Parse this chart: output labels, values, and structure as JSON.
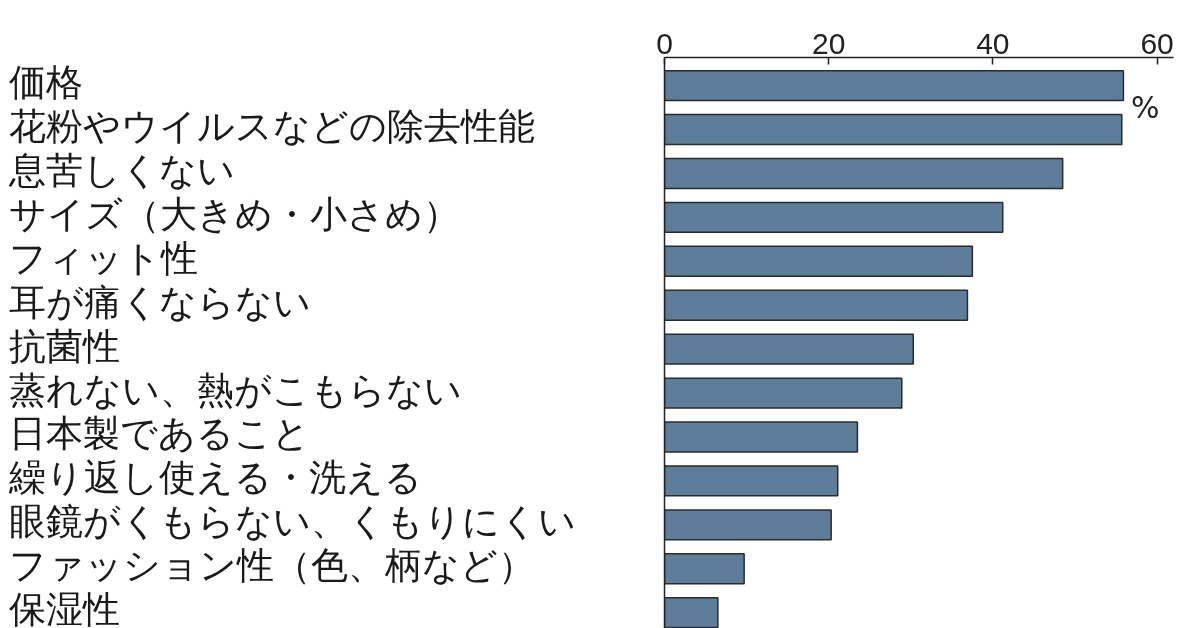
{
  "chart_data": {
    "type": "bar",
    "orientation": "horizontal",
    "categories": [
      "価格",
      "花粉やウイルスなどの除去性能",
      "息苦しくない",
      "サイズ（大きめ・小さめ）",
      "フィット性",
      "耳が痛くならない",
      "抗菌性",
      "蒸れない、熱がこもらない",
      "日本製であること",
      "繰り返し使える・洗える",
      "眼鏡がくもらない、くもりにくい",
      "ファッション性（色、柄など）",
      "保湿性"
    ],
    "values": [
      55.9,
      55.7,
      48.5,
      41.2,
      37.5,
      36.9,
      30.3,
      28.9,
      23.5,
      21.1,
      20.3,
      9.7,
      6.5
    ],
    "color": "#5e7d9a",
    "xlim": [
      0,
      62
    ],
    "xticks": [
      0,
      20,
      40,
      60
    ],
    "xlabel": "%"
  }
}
